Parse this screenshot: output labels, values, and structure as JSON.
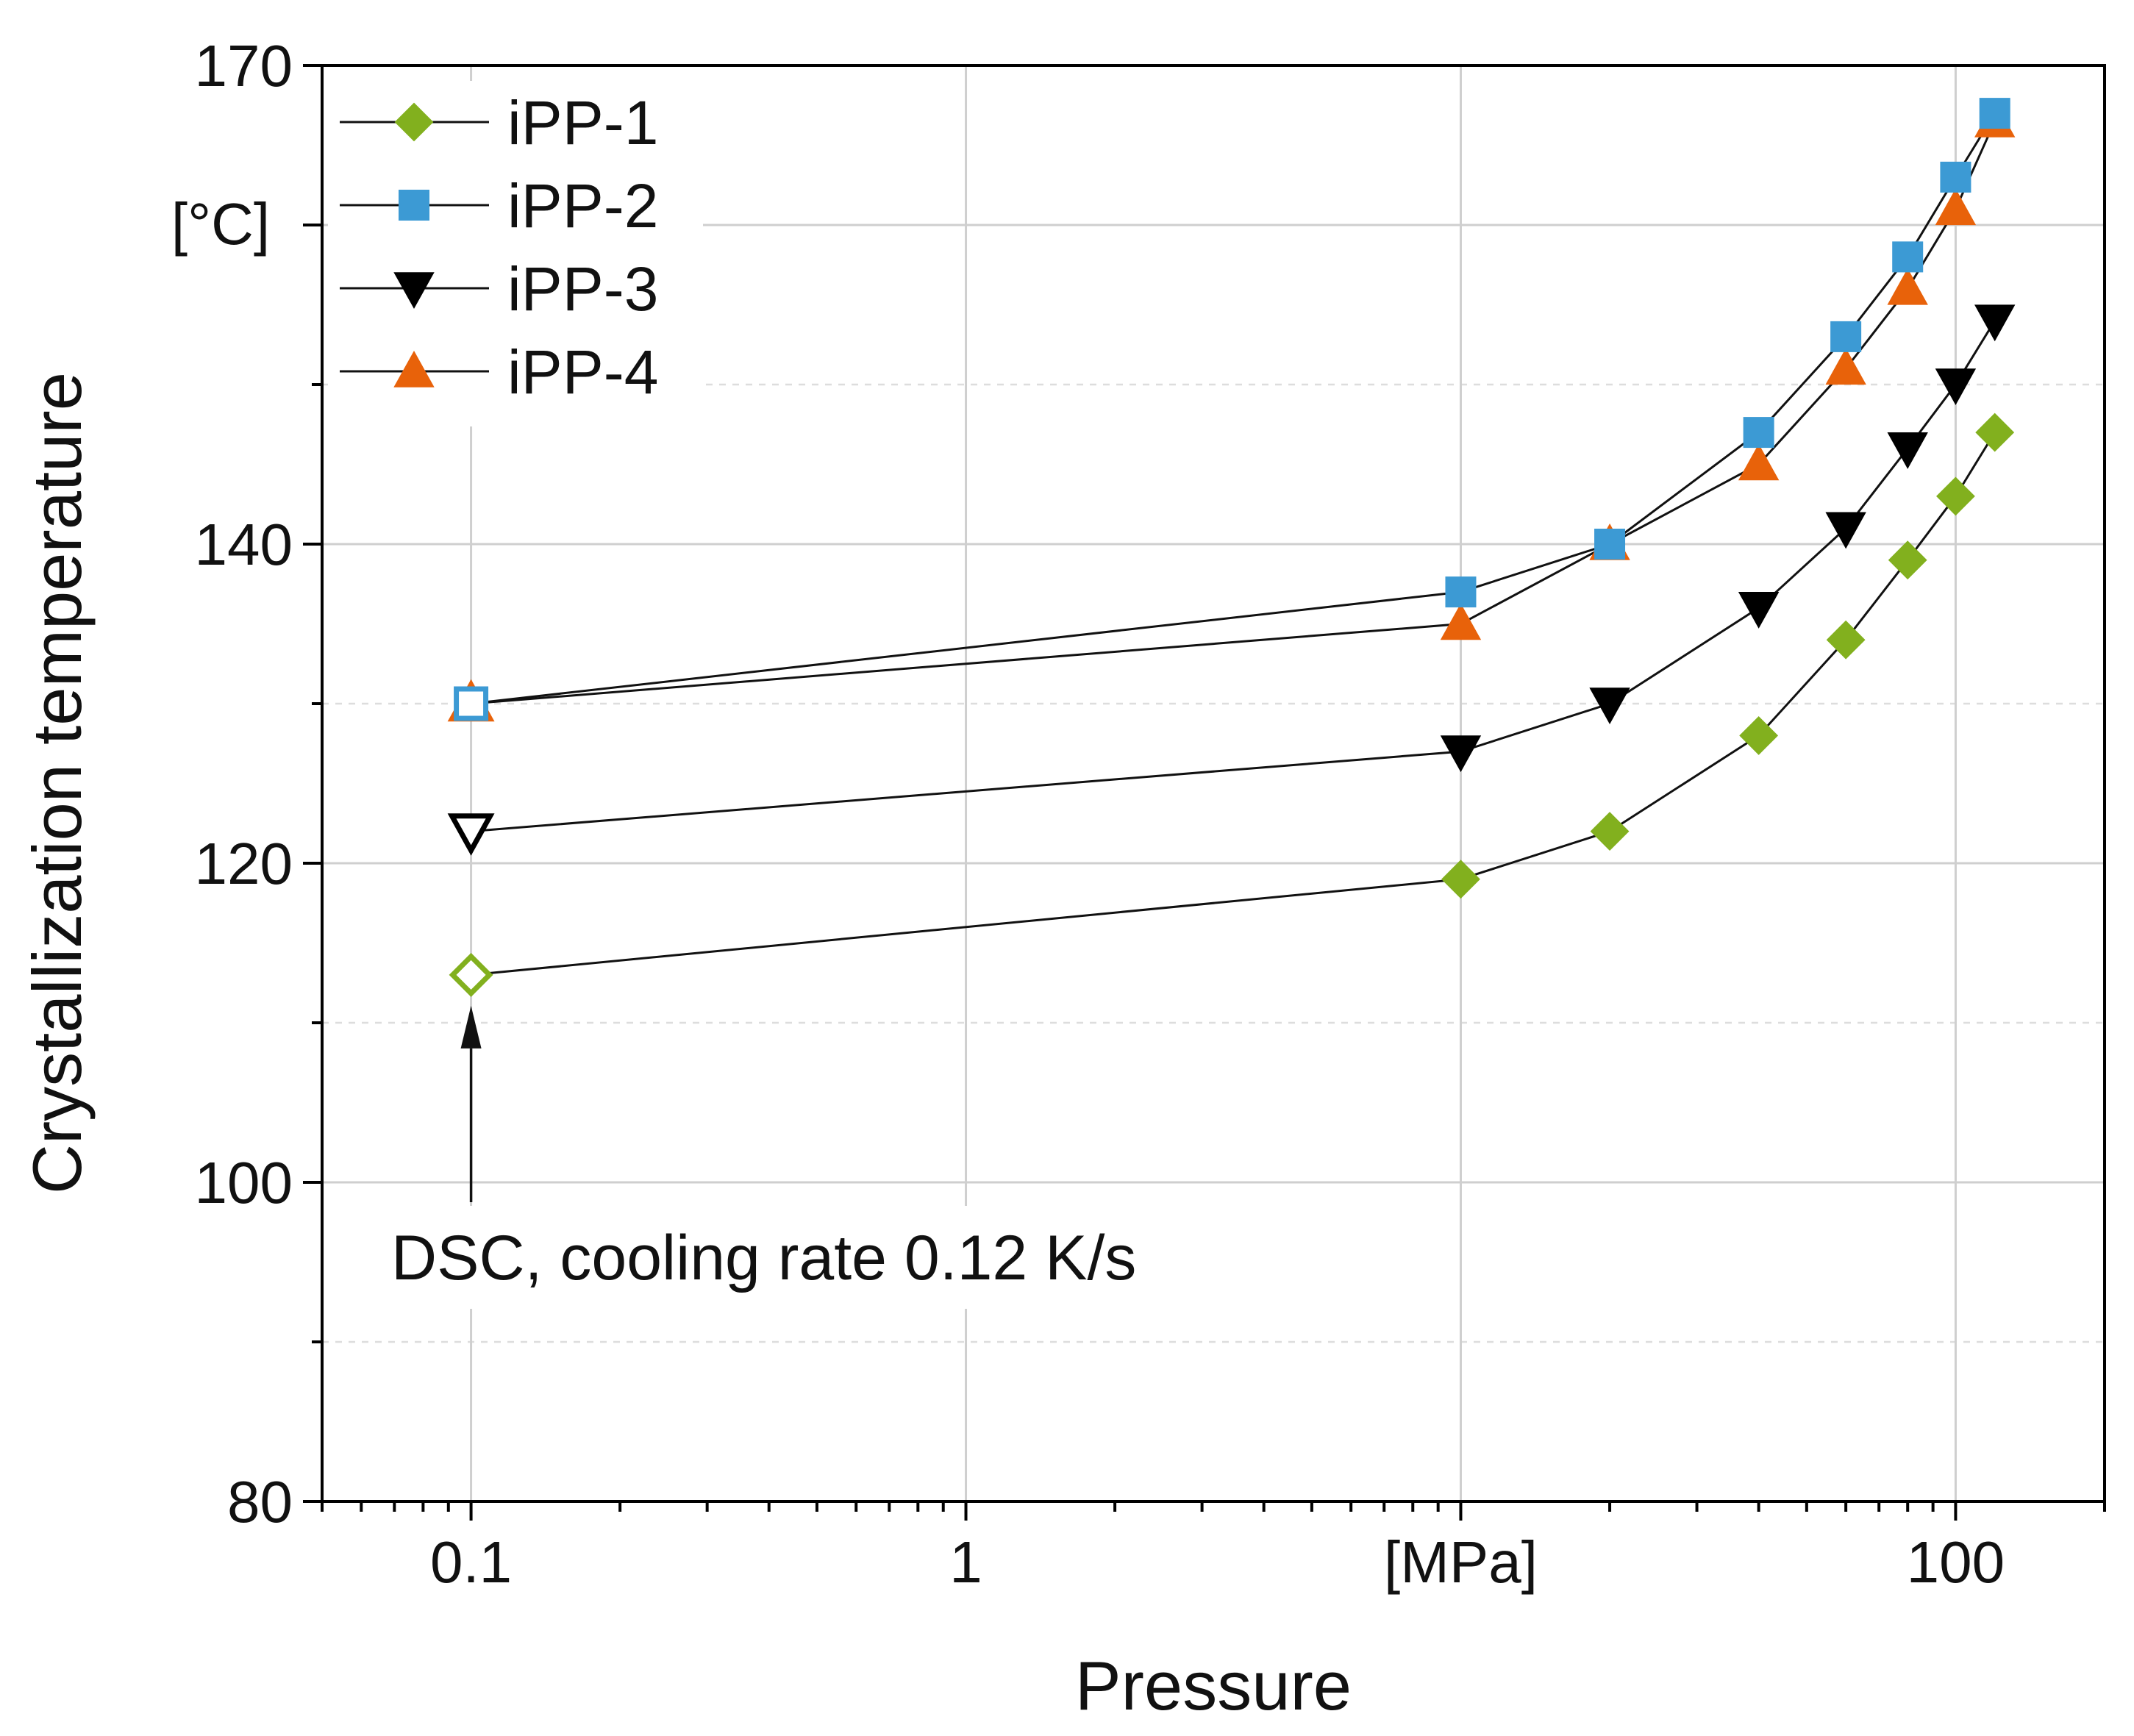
{
  "chart_data": {
    "type": "line",
    "title": "",
    "xlabel": "Pressure",
    "ylabel": "Crystallization temperature",
    "ylabel_unit": "[°C]",
    "xscale": "log",
    "xlim": [
      0.05,
      200
    ],
    "ylim": [
      80,
      170
    ],
    "x_ticks": [
      {
        "value": 0.1,
        "label": "0.1"
      },
      {
        "value": 1,
        "label": "1"
      },
      {
        "value": 10,
        "label": "[MPa]"
      },
      {
        "value": 100,
        "label": "100"
      }
    ],
    "y_ticks": [
      {
        "value": 80,
        "label": "80"
      },
      {
        "value": 100,
        "label": "100"
      },
      {
        "value": 120,
        "label": "120"
      },
      {
        "value": 140,
        "label": "140"
      },
      {
        "value": 170,
        "label": "170"
      }
    ],
    "grid": true,
    "legend_position": "top-left",
    "annotation": {
      "text": "DSC, cooling rate 0.12 K/s",
      "arrow_target": {
        "x": 0.1,
        "y": 113
      }
    },
    "series": [
      {
        "name": "iPP-1",
        "marker": "diamond",
        "color": "#82b01e",
        "x": [
          0.1,
          10,
          20,
          40,
          60,
          80,
          100,
          120
        ],
        "y": [
          113,
          119,
          122,
          128,
          134,
          139,
          143,
          147
        ]
      },
      {
        "name": "iPP-2",
        "marker": "square",
        "color": "#3c9ad4",
        "x": [
          0.1,
          10,
          20,
          40,
          60,
          80,
          100,
          120
        ],
        "y": [
          130,
          137,
          140,
          147,
          153,
          158,
          163,
          167
        ]
      },
      {
        "name": "iPP-3",
        "marker": "triangle-down",
        "color": "#000000",
        "x": [
          0.1,
          10,
          20,
          40,
          60,
          80,
          100,
          120
        ],
        "y": [
          122,
          127,
          130,
          136,
          141,
          146,
          150,
          154
        ]
      },
      {
        "name": "iPP-4",
        "marker": "triangle-up",
        "color": "#e8620a",
        "x": [
          0.1,
          10,
          20,
          40,
          60,
          80,
          100,
          120
        ],
        "y": [
          130,
          135,
          140,
          145,
          151,
          156,
          161,
          166.5
        ]
      }
    ],
    "open_markers_at_x": 0.1
  }
}
